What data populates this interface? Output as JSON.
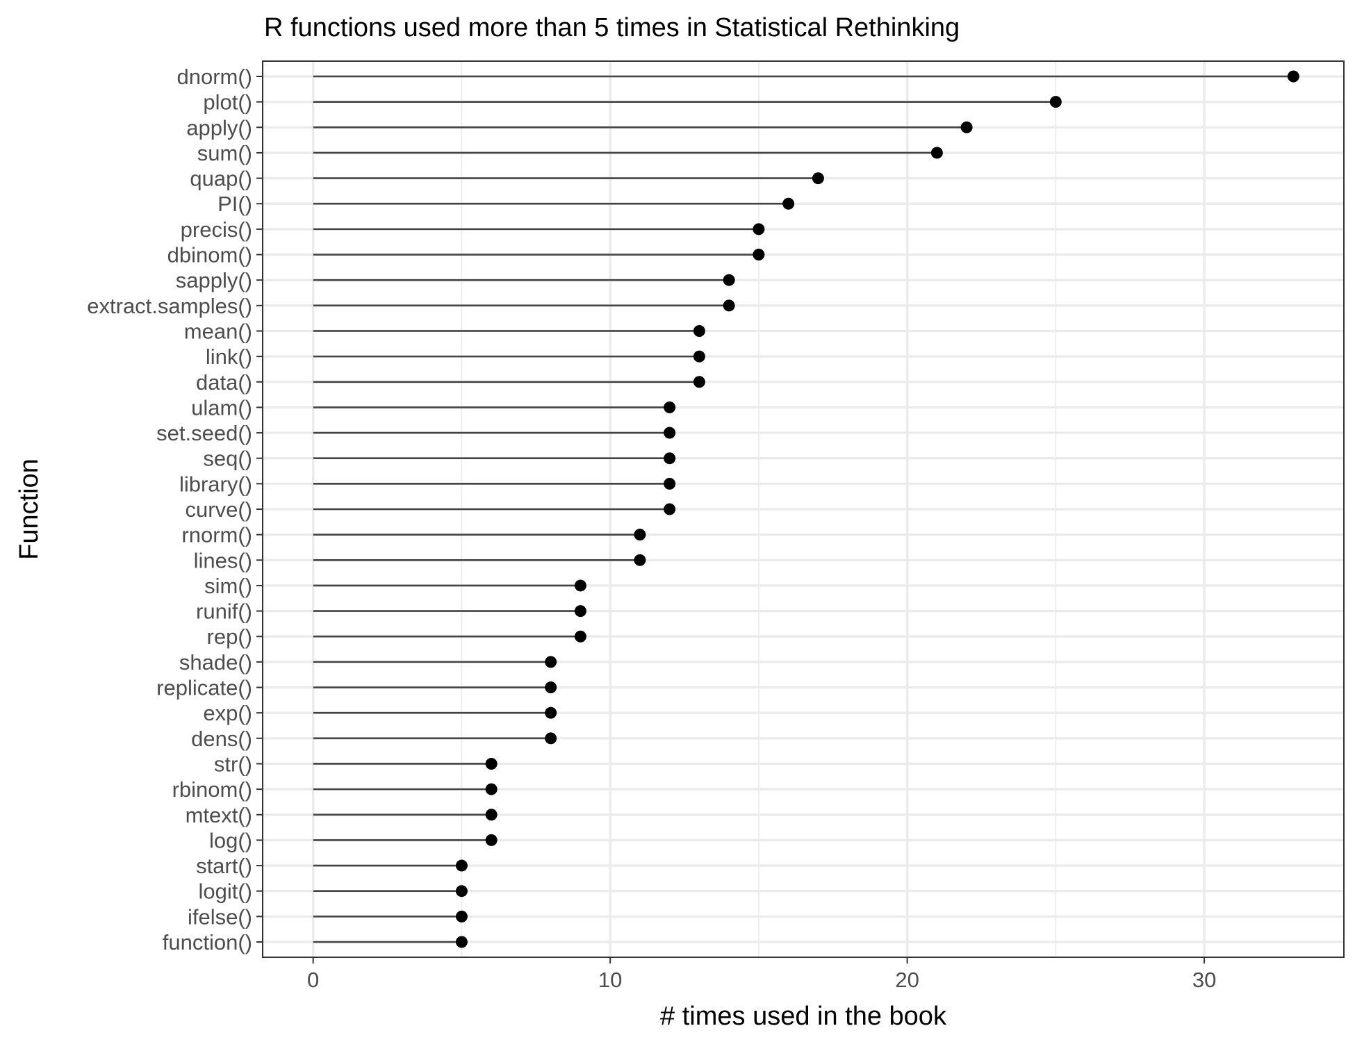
{
  "chart_data": {
    "type": "lollipop",
    "title": "R functions used more than 5 times in Statistical Rethinking",
    "xlabel": "# times used in the book",
    "ylabel": "Function",
    "xlim": [
      -1.7,
      34.7
    ],
    "xticks": [
      0,
      10,
      20,
      30
    ],
    "grid": true,
    "categories": [
      "dnorm()",
      "plot()",
      "apply()",
      "sum()",
      "quap()",
      "PI()",
      "precis()",
      "dbinom()",
      "sapply()",
      "extract.samples()",
      "mean()",
      "link()",
      "data()",
      "ulam()",
      "set.seed()",
      "seq()",
      "library()",
      "curve()",
      "rnorm()",
      "lines()",
      "sim()",
      "runif()",
      "rep()",
      "shade()",
      "replicate()",
      "exp()",
      "dens()",
      "str()",
      "rbinom()",
      "mtext()",
      "log()",
      "start()",
      "logit()",
      "ifelse()",
      "function()"
    ],
    "values": [
      33,
      25,
      22,
      21,
      17,
      16,
      15,
      15,
      14,
      14,
      13,
      13,
      13,
      12,
      12,
      12,
      12,
      12,
      11,
      11,
      9,
      9,
      9,
      8,
      8,
      8,
      8,
      6,
      6,
      6,
      6,
      5,
      5,
      5,
      5
    ]
  }
}
